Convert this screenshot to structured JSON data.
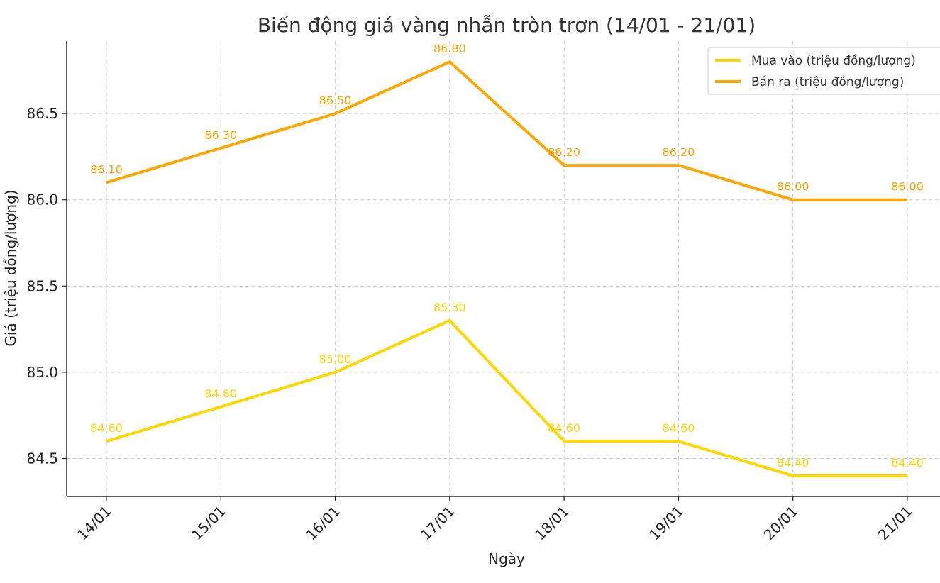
{
  "chart_data": {
    "type": "line",
    "title": "Biến động giá vàng nhẫn tròn trơn (14/01 - 21/01)",
    "xlabel": "Ngày",
    "ylabel": "Giá (triệu đồng/lượng)",
    "categories": [
      "14/01",
      "15/01",
      "16/01",
      "17/01",
      "18/01",
      "19/01",
      "20/01",
      "21/01"
    ],
    "series": [
      {
        "name": "Mua vào (triệu đồng/lượng)",
        "values": [
          84.6,
          84.8,
          85.0,
          85.3,
          84.6,
          84.6,
          84.4,
          84.4
        ],
        "labels": [
          "84.60",
          "84.80",
          "85.00",
          "85.30",
          "84.60",
          "84.60",
          "84.40",
          "84.40"
        ],
        "color": "#FFD700"
      },
      {
        "name": "Bán ra (triệu đồng/lượng)",
        "values": [
          86.1,
          86.3,
          86.5,
          86.8,
          86.2,
          86.2,
          86.0,
          86.0
        ],
        "labels": [
          "86.10",
          "86.30",
          "86.50",
          "86.80",
          "86.20",
          "86.20",
          "86.00",
          "86.00"
        ],
        "color": "#FFA500"
      }
    ],
    "yticks": [
      "84.5",
      "85.0",
      "85.5",
      "86.0",
      "86.5"
    ],
    "ylim": [
      84.28,
      86.92
    ],
    "grid": true,
    "legend_position": "top-right"
  }
}
